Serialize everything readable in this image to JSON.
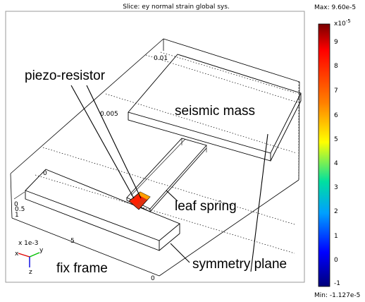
{
  "plot": {
    "title": "Slice: ey normal strain global sys.",
    "max_label": "Max: 9.60e-5",
    "min_label": "Min: -1.127e-5"
  },
  "colorbar": {
    "exponent_label": "x10",
    "exponent_power": "-5",
    "ticks": [
      "9",
      "8",
      "7",
      "6",
      "5",
      "4",
      "3",
      "2",
      "1",
      "0",
      "-1"
    ],
    "colors": [
      "#7a0000",
      "#ff0000",
      "#ff8000",
      "#ffff00",
      "#00e0a0",
      "#00a0ff",
      "#0000ff",
      "#00007a"
    ]
  },
  "axes": {
    "scale_label": "x 1e-3",
    "y_ticks": [
      "0.01",
      "0.005",
      "0"
    ],
    "z_ticks": [
      "0",
      "0.5",
      "1"
    ],
    "x_ticks": [
      "5",
      "0"
    ],
    "triad": {
      "x": "x",
      "y": "y",
      "z": "z"
    }
  },
  "annotations": {
    "piezo_resistor": "piezo-resistor",
    "seismic_mass": "seismic mass",
    "leaf_spring": "leaf spring",
    "fix_frame": "fix frame",
    "symmetry_plane": "symmetry plane"
  },
  "colors": {
    "piezo_fill": "#e03010",
    "piezo_hot": "#ff2000",
    "piezo_edge": "#ffa000",
    "outline": "#000000",
    "dotted": "#000000"
  }
}
